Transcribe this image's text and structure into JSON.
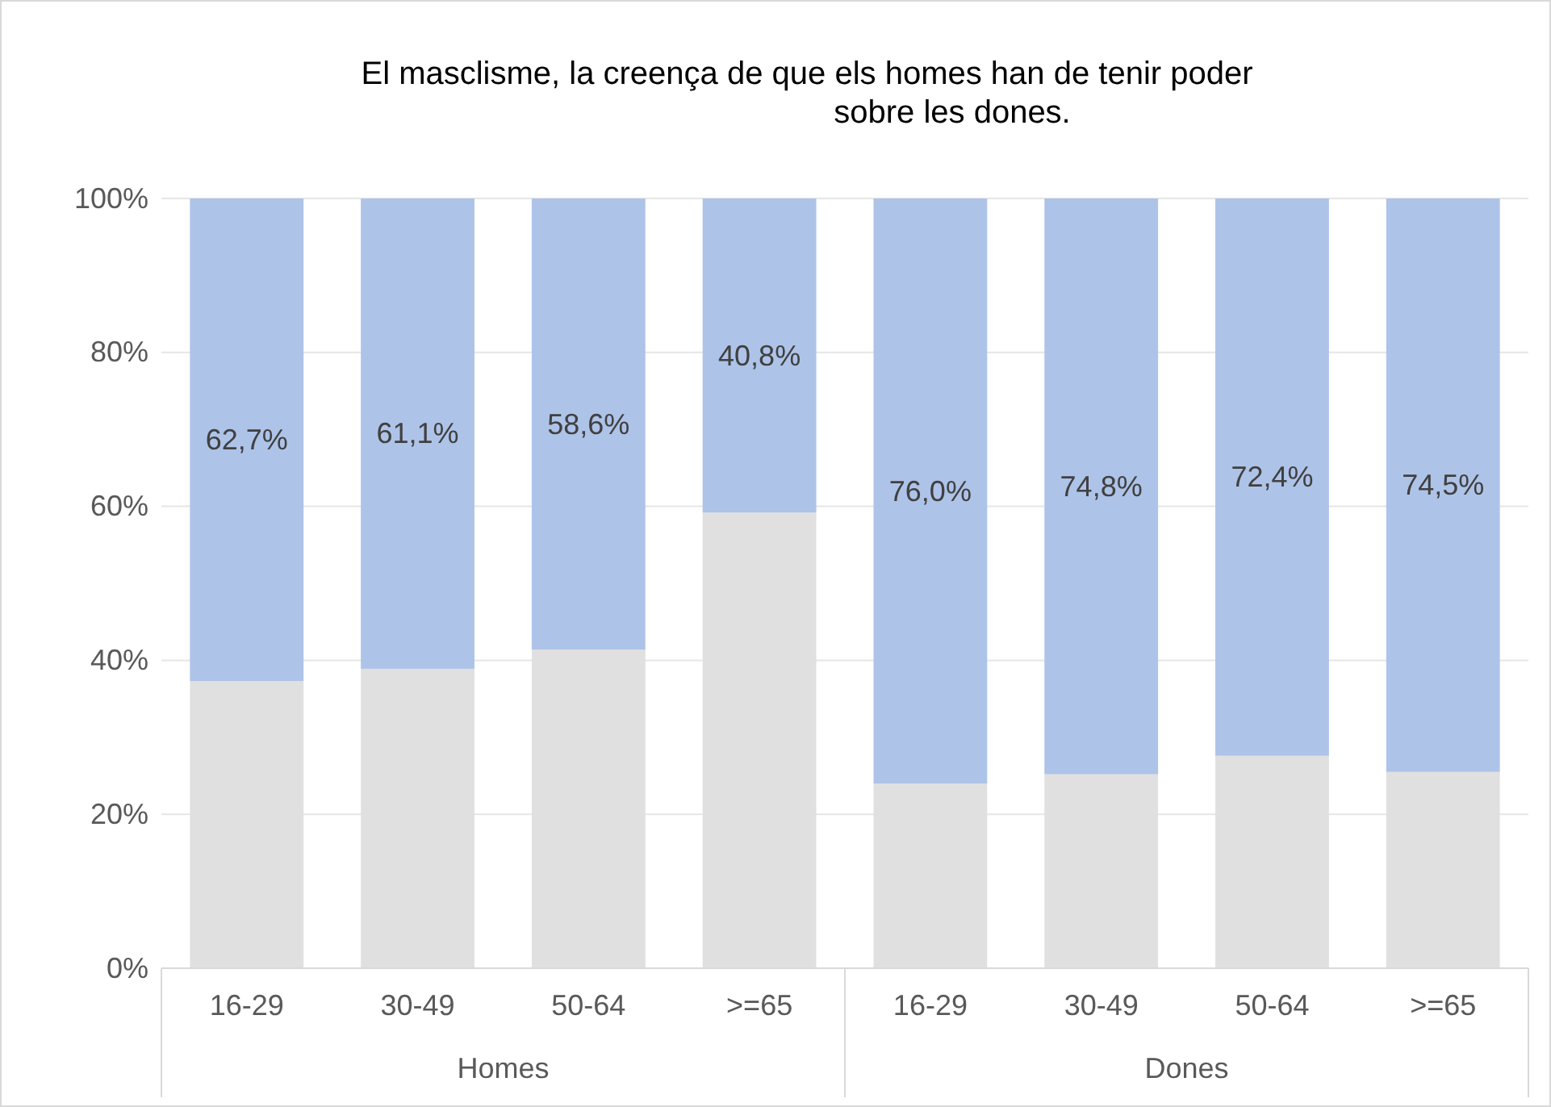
{
  "chart_data": {
    "type": "bar",
    "title": "El masclisme, la creença de que els homes han de tenir poder sobre les dones.",
    "categories": [
      "16-29",
      "30-49",
      "50-64",
      ">=65",
      "16-29",
      "30-49",
      "50-64",
      ">=65"
    ],
    "stacked": true,
    "series": [
      {
        "color": "#e0e0e0",
        "values": [
          37.3,
          38.9,
          41.4,
          59.2,
          24.0,
          25.2,
          27.6,
          25.5
        ]
      },
      {
        "color": "#aec3e8",
        "values": [
          62.7,
          61.1,
          58.6,
          40.8,
          76.0,
          74.8,
          72.4,
          74.5
        ],
        "value_labels": [
          "62,7%",
          "61,1%",
          "58,6%",
          "40,8%",
          "76,0%",
          "74,8%",
          "72,4%",
          "74,5%"
        ]
      }
    ],
    "annotations": [
      "Homes",
      "Dones"
    ],
    "ylim": [
      0,
      100
    ],
    "yticks": [
      {
        "value": 0,
        "label": "0%"
      },
      {
        "value": 20,
        "label": "20%"
      },
      {
        "value": 40,
        "label": "40%"
      },
      {
        "value": 60,
        "label": "60%"
      },
      {
        "value": 80,
        "label": "80%"
      },
      {
        "value": 100,
        "label": "100%"
      }
    ],
    "grid": "y"
  }
}
